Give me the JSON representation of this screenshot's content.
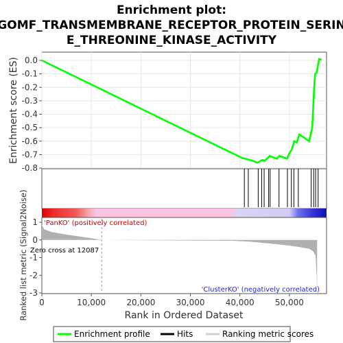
{
  "chart_data": {
    "type": "line",
    "title_lines": [
      "Enrichment plot:",
      "GOMF_TRANSMEMBRANE_RECEPTOR_PROTEIN_SERIN",
      "E_THREONINE_KINASE_ACTIVITY"
    ],
    "xlabel": "Rank in Ordered Dataset",
    "ylabel_top": "Enrichment score (ES)",
    "ylabel_bottom": "Ranked list metric (Signal2Noise)",
    "xlim": [
      0,
      57500
    ],
    "xticks": [
      0,
      10000,
      20000,
      30000,
      40000,
      50000
    ],
    "xtick_labels": [
      "0",
      "10,000",
      "20,000",
      "30,000",
      "40,000",
      "50,000"
    ],
    "es_ylim": [
      -0.8,
      0.05
    ],
    "es_yticks": [
      0.0,
      -0.1,
      -0.2,
      -0.3,
      -0.4,
      -0.5,
      -0.6,
      -0.7,
      -0.8
    ],
    "es_ytick_labels": [
      "0.0",
      "-0.1",
      "-0.2",
      "-0.3",
      "-0.4",
      "-0.5",
      "-0.6",
      "-0.7",
      "-0.8"
    ],
    "metric_ylim": [
      -3,
      1.3
    ],
    "metric_yticks": [
      1,
      0,
      -1,
      -2,
      -3
    ],
    "metric_ytick_labels": [
      "1",
      "0",
      "-1",
      "-2",
      "-3"
    ],
    "es_series": {
      "name": "Enrichment profile",
      "color": "#00ff00",
      "x": [
        0,
        38500,
        40500,
        42500,
        43500,
        44000,
        44500,
        45000,
        45500,
        46000,
        47500,
        48000,
        49500,
        50000,
        50500,
        51000,
        51500,
        52000,
        54000,
        54600,
        55000,
        55200,
        55500,
        56000,
        56500
      ],
      "y": [
        0.0,
        -0.69,
        -0.725,
        -0.745,
        -0.76,
        -0.75,
        -0.74,
        -0.745,
        -0.73,
        -0.71,
        -0.73,
        -0.71,
        -0.73,
        -0.69,
        -0.66,
        -0.6,
        -0.61,
        -0.55,
        -0.6,
        -0.5,
        -0.2,
        -0.1,
        -0.09,
        0.01,
        0.005
      ]
    },
    "hits": [
      40900,
      41700,
      43700,
      44400,
      44900,
      45800,
      46100,
      47900,
      49600,
      50400,
      50900,
      51800,
      54400,
      54900,
      55300,
      55800
    ],
    "metric_series": {
      "name": "Ranking metric scores",
      "color": "#b0b0b0",
      "x": [
        0,
        500,
        2000,
        5000,
        8000,
        10000,
        12087,
        38500,
        42000,
        46000,
        50000,
        52000,
        54000,
        54800,
        55300,
        55500,
        55600
      ],
      "y": [
        0.85,
        0.6,
        0.45,
        0.3,
        0.18,
        0.1,
        0.0,
        -0.05,
        -0.1,
        -0.2,
        -0.32,
        -0.4,
        -0.5,
        -0.65,
        -0.9,
        -2.0,
        -3.0
      ]
    },
    "zero_cross_label": "Zero cross at 12087",
    "zero_cross_x": 12087,
    "pos_label": "'PanKO' (positively correlated)",
    "neg_label": "'ClusterKO' (negatively correlated)",
    "pos_color": "#cc0000",
    "neg_color": "#2222cc",
    "legend": [
      {
        "label": "Enrichment profile",
        "color": "#00ff00"
      },
      {
        "label": "Hits",
        "color": "#000000"
      },
      {
        "label": "Ranking metric scores",
        "color": "#d0d0d0"
      }
    ]
  }
}
